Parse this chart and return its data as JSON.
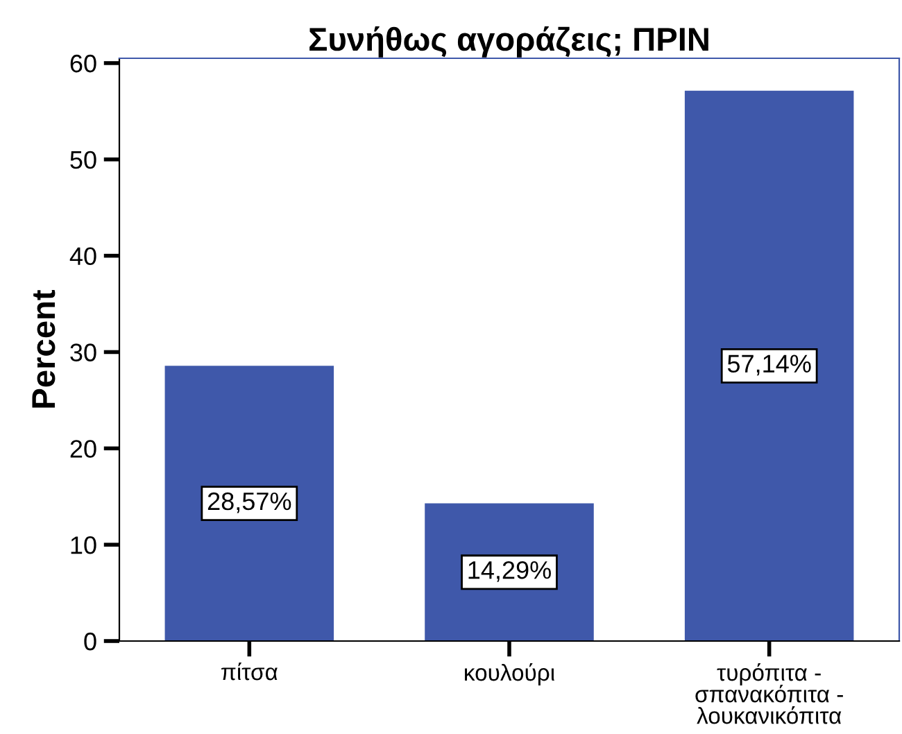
{
  "chart_data": {
    "type": "bar",
    "title": "Συνήθως αγοράζεις; ΠΡΙΝ",
    "ylabel": "Percent",
    "categories": [
      "πίτσα",
      "κουλούρι",
      "τυρόπιτα -\nσπανακόπιτα -\nλουκανικόπιτα"
    ],
    "values": [
      28.57,
      14.29,
      57.14
    ],
    "color": "#3f58aa",
    "value_labels": [
      "28,57%",
      "14,29%",
      "57,14%"
    ],
    "ylim": [
      0,
      60.5
    ],
    "yticks": [
      0,
      10,
      20,
      30,
      40,
      50,
      60
    ],
    "grid": false,
    "legend": false
  }
}
